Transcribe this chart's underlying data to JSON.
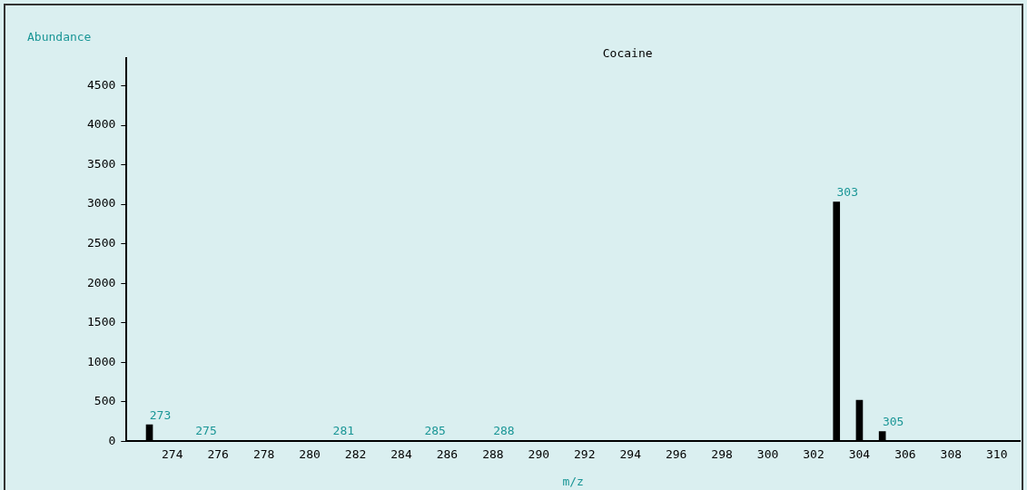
{
  "chart_data": {
    "type": "bar",
    "title": "Cocaine",
    "xlabel": "m/z",
    "ylabel": "Abundance",
    "x": [
      273,
      275,
      281,
      285,
      288,
      303,
      304,
      305
    ],
    "values": [
      210,
      10,
      10,
      10,
      10,
      3030,
      520,
      125
    ],
    "color": "#000000",
    "xlim": [
      272,
      311
    ],
    "xticks": [
      274,
      276,
      278,
      280,
      282,
      284,
      286,
      288,
      290,
      292,
      294,
      296,
      298,
      300,
      302,
      304,
      306,
      308,
      310
    ],
    "ylim": [
      0,
      4850
    ],
    "yticks": [
      0,
      500,
      1000,
      1500,
      2000,
      2500,
      3000,
      3500,
      4000,
      4500
    ],
    "annotations": [
      {
        "text": "273",
        "x": 273,
        "y": 210
      },
      {
        "text": "275",
        "x": 275,
        "y": 10
      },
      {
        "text": "281",
        "x": 281,
        "y": 10
      },
      {
        "text": "285",
        "x": 285,
        "y": 10
      },
      {
        "text": "288",
        "x": 288,
        "y": 10
      },
      {
        "text": "303",
        "x": 303,
        "y": 3030
      },
      {
        "text": "305",
        "x": 305,
        "y": 125
      }
    ],
    "grid": false,
    "legend": false
  }
}
